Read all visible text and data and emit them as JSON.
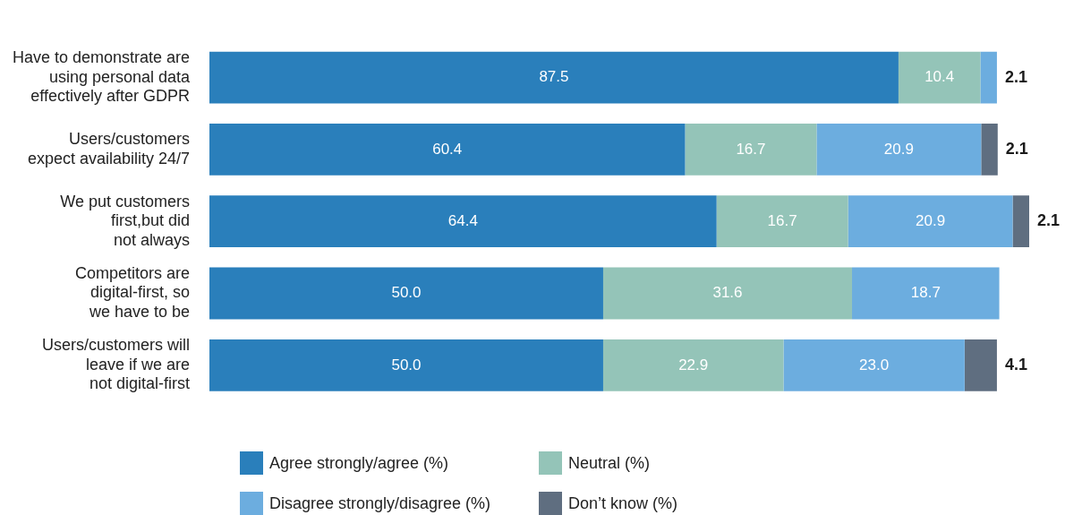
{
  "chart_data": {
    "type": "bar",
    "orientation": "horizontal",
    "stacked": true,
    "categories": [
      "Have to demonstrate are\nusing personal data\neffectively after GDPR",
      "Users/customers\nexpect availability 24/7",
      "We put customers\nfirst,but did\nnot always",
      "Competitors are\ndigital-first, so\nwe have to be",
      "Users/customers will\nleave if we are\nnot digital-first"
    ],
    "series": [
      {
        "name": "Agree strongly/agree (%)",
        "color": "#2a7fbb",
        "values": [
          87.5,
          60.4,
          64.4,
          50.0,
          50.0
        ],
        "value_labels": [
          "87.5",
          "60.4",
          "64.4",
          "50.0",
          "50.0"
        ]
      },
      {
        "name": "Neutral (%)",
        "color": "#94c4b8",
        "values": [
          10.4,
          16.7,
          16.7,
          31.6,
          22.9
        ],
        "value_labels": [
          "10.4",
          "16.7",
          "16.7",
          "31.6",
          "22.9"
        ]
      },
      {
        "name": "Disagree strongly/disagree (%)",
        "color": "#6caddf",
        "values": [
          2.1,
          20.9,
          20.9,
          18.7,
          23.0
        ],
        "value_labels": [
          "2.1",
          "20.9",
          "20.9",
          "18.7",
          "23.0"
        ]
      },
      {
        "name": "Don’t know (%)",
        "color": "#5f6e80",
        "values": [
          null,
          2.1,
          2.1,
          null,
          4.1
        ],
        "value_labels": [
          null,
          "2.1",
          "2.1",
          null,
          "4.1"
        ]
      }
    ],
    "legend": "bottom",
    "tick_labels": "y"
  }
}
